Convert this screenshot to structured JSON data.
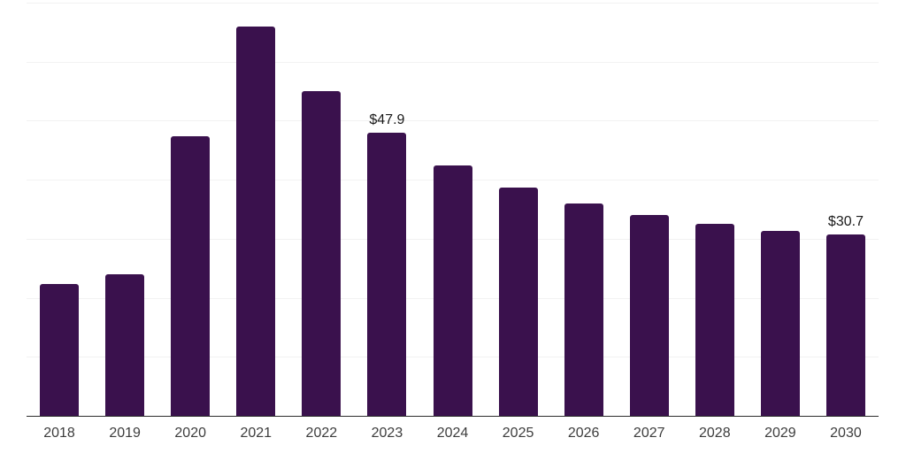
{
  "chart_data": {
    "type": "bar",
    "title": "",
    "xlabel": "",
    "ylabel": "",
    "categories": [
      "2018",
      "2019",
      "2020",
      "2021",
      "2022",
      "2023",
      "2024",
      "2025",
      "2026",
      "2027",
      "2028",
      "2029",
      "2030"
    ],
    "values": [
      22.4,
      24.0,
      47.3,
      65.9,
      55.0,
      47.9,
      42.4,
      38.7,
      36.0,
      34.0,
      32.6,
      31.3,
      30.7
    ],
    "point_labels": [
      "",
      "",
      "",
      "",
      "",
      "$47.9",
      "",
      "",
      "",
      "",
      "",
      "",
      "$30.7"
    ],
    "ylim": [
      0,
      70
    ],
    "gridline_step": 10,
    "grid": true,
    "legend": false,
    "colors": {
      "bar": "#3a114d",
      "gridline": "#f2f2f2",
      "axis_line": "#2d2d2d",
      "tick_label": "#3d3d3d",
      "data_label": "#1a1a1a",
      "background": "#ffffff"
    }
  }
}
